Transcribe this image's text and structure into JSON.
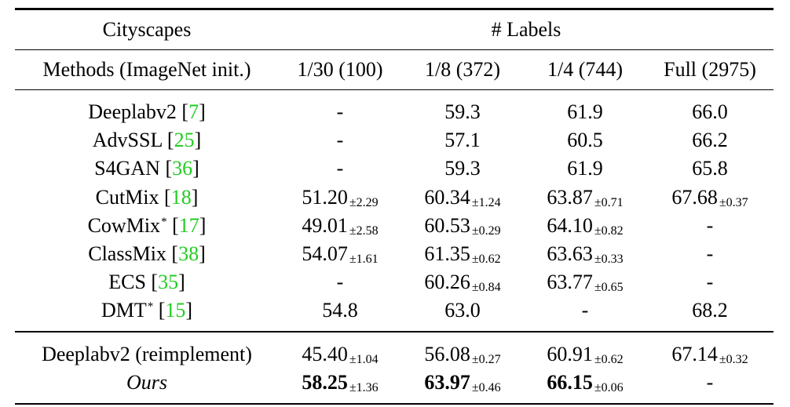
{
  "header": {
    "dataset": "Cityscapes",
    "group_label": "# Labels",
    "methods_label": "Methods (ImageNet init.)",
    "columns": [
      "1/30 (100)",
      "1/8 (372)",
      "1/4 (744)",
      "Full (2975)"
    ]
  },
  "rows": [
    {
      "name": "Deeplabv2",
      "cite": "7",
      "star": "",
      "cells": [
        {
          "v": "-",
          "s": ""
        },
        {
          "v": "59.3",
          "s": ""
        },
        {
          "v": "61.9",
          "s": ""
        },
        {
          "v": "66.0",
          "s": ""
        }
      ]
    },
    {
      "name": "AdvSSL",
      "cite": "25",
      "star": "",
      "cells": [
        {
          "v": "-",
          "s": ""
        },
        {
          "v": "57.1",
          "s": ""
        },
        {
          "v": "60.5",
          "s": ""
        },
        {
          "v": "66.2",
          "s": ""
        }
      ]
    },
    {
      "name": "S4GAN",
      "cite": "36",
      "star": "",
      "cells": [
        {
          "v": "-",
          "s": ""
        },
        {
          "v": "59.3",
          "s": ""
        },
        {
          "v": "61.9",
          "s": ""
        },
        {
          "v": "65.8",
          "s": ""
        }
      ]
    },
    {
      "name": "CutMix",
      "cite": "18",
      "star": "",
      "cells": [
        {
          "v": "51.20",
          "s": "±2.29"
        },
        {
          "v": "60.34",
          "s": "±1.24"
        },
        {
          "v": "63.87",
          "s": "±0.71"
        },
        {
          "v": "67.68",
          "s": "±0.37"
        }
      ]
    },
    {
      "name": "CowMix",
      "cite": "17",
      "star": "*",
      "cells": [
        {
          "v": "49.01",
          "s": "±2.58"
        },
        {
          "v": "60.53",
          "s": "±0.29"
        },
        {
          "v": "64.10",
          "s": "±0.82"
        },
        {
          "v": "-",
          "s": ""
        }
      ]
    },
    {
      "name": "ClassMix",
      "cite": "38",
      "star": "",
      "cells": [
        {
          "v": "54.07",
          "s": "±1.61"
        },
        {
          "v": "61.35",
          "s": "±0.62"
        },
        {
          "v": "63.63",
          "s": "±0.33"
        },
        {
          "v": "-",
          "s": ""
        }
      ]
    },
    {
      "name": "ECS",
      "cite": "35",
      "star": "",
      "cells": [
        {
          "v": "-",
          "s": ""
        },
        {
          "v": "60.26",
          "s": "±0.84"
        },
        {
          "v": "63.77",
          "s": "±0.65"
        },
        {
          "v": "-",
          "s": ""
        }
      ]
    },
    {
      "name": "DMT",
      "cite": "15",
      "star": "*",
      "cells": [
        {
          "v": "54.8",
          "s": ""
        },
        {
          "v": "63.0",
          "s": ""
        },
        {
          "v": "-",
          "s": ""
        },
        {
          "v": "68.2",
          "s": ""
        }
      ]
    }
  ],
  "bottom_rows": [
    {
      "name": "Deeplabv2 (reimplement)",
      "italic": false,
      "cells": [
        {
          "v": "45.40",
          "s": "±1.04",
          "b": false
        },
        {
          "v": "56.08",
          "s": "±0.27",
          "b": false
        },
        {
          "v": "60.91",
          "s": "±0.62",
          "b": false
        },
        {
          "v": "67.14",
          "s": "±0.32",
          "b": false
        }
      ]
    },
    {
      "name": "Ours",
      "italic": true,
      "cells": [
        {
          "v": "58.25",
          "s": "±1.36",
          "b": true
        },
        {
          "v": "63.97",
          "s": "±0.46",
          "b": true
        },
        {
          "v": "66.15",
          "s": "±0.06",
          "b": true
        },
        {
          "v": "-",
          "s": "",
          "b": false
        }
      ]
    }
  ]
}
